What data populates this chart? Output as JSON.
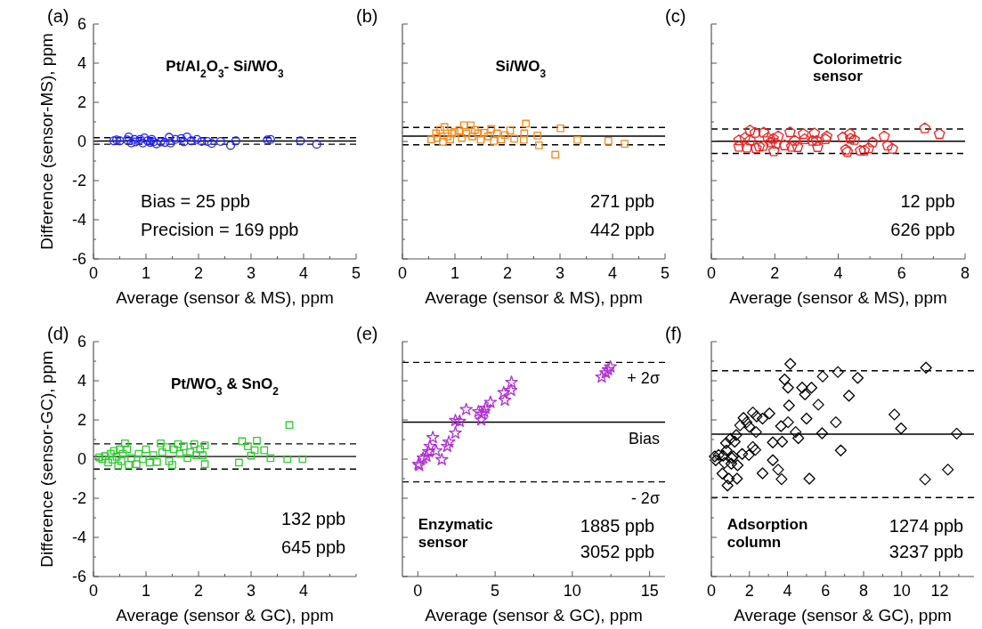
{
  "chart_data": [
    {
      "type": "scatter",
      "xlabel": "Average (sensor & MS), ppm",
      "ylabel": "Difference (sensor-MS), ppm",
      "annotations": [
        "(a)",
        "Pt/Al$_{2}$O$_{3}$- Si/WO$_{3}$",
        "Bias = 25 ppb",
        "Precision = 169 ppb"
      ],
      "marker": "circle",
      "color": "#1f1fff",
      "x": [
        0.44,
        0.5,
        0.67,
        0.64,
        0.8,
        0.78,
        0.89,
        0.97,
        1.03,
        1.08,
        1.14,
        1.2,
        1.28,
        1.36,
        1.44,
        1.47,
        1.56,
        1.67,
        1.78,
        1.86,
        1.97,
        2.06,
        2.17,
        2.25,
        2.42,
        2.61,
        2.71,
        3.31,
        3.37,
        3.94,
        4.25,
        0.39,
        0.72,
        0.94,
        1.11,
        1.72
      ],
      "values": [
        0.08,
        0.03,
        0.23,
        0.08,
        -0.02,
        0.1,
        0.1,
        0.18,
        0.03,
        -0.05,
        -0.02,
        -0.12,
        -0.02,
        -0.05,
        0.21,
        -0.08,
        0.1,
        0.15,
        0.23,
        0.03,
        0.1,
        0,
        0,
        -0.1,
        0,
        -0.2,
        0.03,
        0.08,
        0.1,
        0.03,
        -0.15,
        0.03,
        -0.08,
        -0.08,
        0.1,
        -0.02
      ],
      "xlim": [
        0,
        5
      ],
      "xticks": [
        0,
        {
          "value": 0.5,
          "label": null
        },
        1,
        {
          "value": 1.5,
          "label": null
        },
        2,
        {
          "value": 2.5,
          "label": null
        },
        3,
        {
          "value": 3.5,
          "label": null
        },
        4,
        {
          "value": 4.5,
          "label": null
        },
        5
      ],
      "ylim": [
        -6,
        6
      ],
      "yticks": [
        -6,
        {
          "value": -5,
          "label": null
        },
        -4,
        {
          "value": -3,
          "label": null
        },
        -2,
        {
          "value": -1,
          "label": null
        },
        0,
        {
          "value": 1,
          "label": null
        },
        2,
        {
          "value": 3,
          "label": null
        },
        4,
        {
          "value": 5,
          "label": null
        },
        6
      ],
      "ref_lines": [
        {
          "axis": "y",
          "value": 0.025,
          "color": "#000000",
          "line_style": "solid"
        },
        {
          "axis": "y",
          "value": 0.194,
          "color": "#000000",
          "line_style": "dashed"
        },
        {
          "axis": "y",
          "value": -0.144,
          "color": "#000000",
          "line_style": "dashed"
        }
      ]
    },
    {
      "type": "scatter",
      "xlabel": "Average (sensor & MS), ppm",
      "annotations": [
        "(b)",
        "Si/WO$_{3}$",
        "271 ppb",
        "442 ppb"
      ],
      "marker": "square",
      "color": "#f58a1f",
      "x": [
        0.55,
        0.64,
        0.72,
        0.8,
        0.77,
        0.86,
        0.91,
        0.99,
        1.08,
        1.13,
        1.17,
        1.22,
        1.3,
        1.33,
        1.38,
        1.49,
        1.55,
        1.63,
        1.69,
        1.74,
        1.8,
        1.88,
        1.95,
        2.05,
        2.13,
        2.31,
        2.32,
        2.35,
        2.57,
        2.6,
        2.91,
        3.01,
        3.33,
        3.92,
        4.23,
        0.66,
        0.94,
        1.44
      ],
      "values": [
        0.1,
        0.41,
        0.59,
        0.74,
        -0.02,
        0.26,
        0.1,
        0.48,
        0.56,
        0.18,
        0.83,
        0.41,
        0.83,
        0.26,
        0.59,
        0.08,
        0.44,
        0.26,
        0.64,
        0.03,
        0.41,
        0.1,
        0.33,
        0.56,
        0.14,
        0.08,
        0.41,
        0.91,
        0.3,
        -0.2,
        -0.68,
        0.67,
        0.08,
        0.03,
        -0.12,
        0.18,
        0.41,
        0.41
      ],
      "xlim": [
        0,
        5
      ],
      "xticks": [
        0,
        {
          "value": 0.5,
          "label": null
        },
        1,
        {
          "value": 1.5,
          "label": null
        },
        2,
        {
          "value": 2.5,
          "label": null
        },
        3,
        {
          "value": 3.5,
          "label": null
        },
        4,
        {
          "value": 4.5,
          "label": null
        },
        5
      ],
      "ylim": [
        -6,
        6
      ],
      "yticks": [
        -6,
        {
          "value": -5,
          "label": null
        },
        -4,
        {
          "value": -3,
          "label": null
        },
        -2,
        {
          "value": -1,
          "label": null
        },
        0,
        {
          "value": 1,
          "label": null
        },
        2,
        {
          "value": 3,
          "label": null
        },
        4,
        {
          "value": 5,
          "label": null
        },
        6
      ],
      "tick_labels": "x",
      "ref_lines": [
        {
          "axis": "y",
          "value": 0.271,
          "color": "#000000",
          "line_style": "solid"
        },
        {
          "axis": "y",
          "value": 0.713,
          "color": "#000000",
          "line_style": "dashed"
        },
        {
          "axis": "y",
          "value": -0.171,
          "color": "#000000",
          "line_style": "dashed"
        }
      ]
    },
    {
      "type": "scatter",
      "xlabel": "Average (sensor & MS), ppm",
      "annotations": [
        "(c)",
        "Colorimetric\nsensor",
        "12 ppb",
        "626 ppb"
      ],
      "color": "#ee2222",
      "x": [
        0.87,
        0.87,
        1.06,
        1.12,
        1.22,
        1.22,
        1.38,
        1.41,
        1.51,
        1.63,
        1.65,
        1.78,
        1.87,
        1.95,
        1.97,
        2.04,
        2.11,
        2.31,
        2.48,
        2.53,
        2.63,
        2.72,
        2.9,
        2.94,
        3.19,
        3.25,
        3.32,
        3.35,
        3.6,
        3.64,
        4.14,
        4.24,
        4.29,
        4.37,
        4.39,
        4.51,
        4.7,
        4.82,
        4.96,
        5.08,
        5.45,
        5.56,
        5.71,
        6.73,
        7.19
      ],
      "values": [
        0.06,
        -0.27,
        0.18,
        -0.32,
        0.56,
        0.06,
        0.44,
        -0.35,
        -0.26,
        -0.23,
        0.45,
        0.18,
        -0.05,
        0.14,
        -0.5,
        -0.11,
        0.26,
        -0.2,
        0.47,
        -0.27,
        0.03,
        -0.29,
        0.38,
        0.11,
        0.03,
        0.41,
        0.03,
        -0.29,
        0.11,
        0.26,
        0.2,
        -0.42,
        -0.53,
        0.38,
        0.14,
        0.08,
        -0.47,
        -0.47,
        -0.35,
        -0.05,
        0.26,
        -0.21,
        -0.38,
        0.67,
        0.38
      ],
      "xlim": [
        0,
        8
      ],
      "xticks": [
        0,
        {
          "value": 1,
          "label": null
        },
        2,
        {
          "value": 3,
          "label": null
        },
        4,
        {
          "value": 5,
          "label": null
        },
        6,
        {
          "value": 7,
          "label": null
        },
        8
      ],
      "ylim": [
        -6,
        6
      ],
      "yticks": [
        -6,
        {
          "value": -5,
          "label": null
        },
        -4,
        {
          "value": -3,
          "label": null
        },
        -2,
        {
          "value": -1,
          "label": null
        },
        0,
        {
          "value": 1,
          "label": null
        },
        2,
        {
          "value": 3,
          "label": null
        },
        4,
        {
          "value": 5,
          "label": null
        },
        6
      ],
      "tick_labels": "x",
      "ref_lines": [
        {
          "axis": "y",
          "value": 0.012,
          "color": "#000000",
          "line_style": "solid"
        },
        {
          "axis": "y",
          "value": 0.638,
          "color": "#000000",
          "line_style": "dashed"
        },
        {
          "axis": "y",
          "value": -0.614,
          "color": "#000000",
          "line_style": "dashed"
        }
      ]
    },
    {
      "type": "scatter",
      "xlabel": "Average (sensor & GC), ppm",
      "ylabel": "Difference (sensor-GC), ppm",
      "annotations": [
        "(d)",
        "Pt/WO$_{3}$ & SnO$_{2}$",
        "132 ppb",
        "645 ppb"
      ],
      "marker": "square",
      "color": "#2ecc2e",
      "x": [
        0.11,
        0.17,
        0.22,
        0.28,
        0.33,
        0.36,
        0.39,
        0.44,
        0.47,
        0.5,
        0.53,
        0.56,
        0.6,
        0.64,
        0.67,
        0.72,
        0.82,
        0.86,
        0.94,
        1.0,
        1.07,
        1.14,
        1.21,
        1.28,
        1.31,
        1.39,
        1.44,
        1.5,
        1.53,
        1.61,
        1.64,
        1.72,
        1.79,
        1.84,
        1.92,
        1.96,
        2.03,
        2.08,
        2.12,
        2.12,
        2.77,
        2.83,
        2.94,
        3.0,
        3.07,
        3.11,
        3.25,
        3.37,
        3.69,
        3.73,
        3.98
      ],
      "values": [
        0.09,
        0,
        0.15,
        -0.18,
        0.27,
        -0.03,
        0.42,
        0.12,
        -0.33,
        0.5,
        -0.11,
        0.27,
        0.8,
        0.5,
        -0.3,
        0.05,
        -0.26,
        0.27,
        0,
        0.5,
        -0.18,
        0.2,
        -0.15,
        0.8,
        0.35,
        0.61,
        -0.11,
        -0.3,
        0.5,
        0.76,
        0.27,
        0.65,
        0.05,
        0.35,
        0.76,
        0.2,
        0.5,
        0.2,
        0.7,
        -0.26,
        -0.18,
        0.91,
        0.65,
        0.18,
        0.45,
        0.94,
        0.45,
        0.05,
        0,
        1.74,
        0
      ],
      "xlim": [
        0,
        5
      ],
      "xticks": [
        0,
        {
          "value": 0.5,
          "label": null
        },
        1,
        {
          "value": 1.5,
          "label": null
        },
        2,
        {
          "value": 2.5,
          "label": null
        },
        3,
        {
          "value": 3.5,
          "label": null
        },
        4,
        {
          "value": 4.5,
          "label": null
        },
        {
          "value": 5,
          "label": null
        }
      ],
      "ylim": [
        -6,
        6
      ],
      "yticks": [
        -6,
        {
          "value": -5,
          "label": null
        },
        -4,
        {
          "value": -3,
          "label": null
        },
        -2,
        {
          "value": -1,
          "label": null
        },
        0,
        {
          "value": 1,
          "label": null
        },
        2,
        {
          "value": 3,
          "label": null
        },
        4,
        {
          "value": 5,
          "label": null
        },
        6
      ],
      "ref_lines": [
        {
          "axis": "y",
          "value": 0.132,
          "color": "#000000",
          "line_style": "solid"
        },
        {
          "axis": "y",
          "value": 0.777,
          "color": "#000000",
          "line_style": "dashed"
        },
        {
          "axis": "y",
          "value": -0.513,
          "color": "#000000",
          "line_style": "dashed"
        }
      ]
    },
    {
      "type": "scatter",
      "xlabel": "Average (sensor & GC), ppm",
      "annotations": [
        "(e)",
        "Enzymatic\nsensor",
        "1885 ppb",
        "3052 ppb"
      ],
      "marker": "star",
      "color": "#b02fd6",
      "x": [
        0.09,
        0.04,
        0.34,
        0.56,
        0.69,
        0.78,
        0.97,
        1.18,
        1.55,
        1.9,
        2.01,
        2.43,
        2.43,
        2.71,
        3.13,
        3.92,
        4.1,
        4.14,
        4.29,
        4.38,
        4.7,
        5.56,
        5.63,
        6.03,
        6.06,
        11.9,
        12.16,
        12.31,
        12.46
      ],
      "values": [
        -0.33,
        -0.26,
        0.05,
        0.15,
        0.38,
        0.65,
        1.1,
        0.42,
        -0.03,
        0.65,
        0.87,
        1.33,
        1.97,
        1.93,
        2.53,
        2.42,
        2.0,
        2.3,
        2.42,
        2.6,
        2.9,
        3.39,
        3.01,
        3.51,
        3.92,
        4.19,
        4.41,
        4.56,
        4.71
      ],
      "xlim": [
        -1,
        16
      ],
      "xticks": [
        0,
        {
          "value": 2.5,
          "label": null
        },
        5,
        {
          "value": 7.5,
          "label": null
        },
        10,
        {
          "value": 12.5,
          "label": null
        },
        15
      ],
      "ylim": [
        -6,
        6
      ],
      "yticks": [
        -6,
        {
          "value": -5,
          "label": null
        },
        -4,
        {
          "value": -3,
          "label": null
        },
        -2,
        {
          "value": -1,
          "label": null
        },
        0,
        {
          "value": 1,
          "label": null
        },
        2,
        {
          "value": 3,
          "label": null
        },
        4,
        {
          "value": 5,
          "label": null
        },
        6
      ],
      "tick_labels": "x",
      "ref_lines": [
        {
          "axis": "y",
          "value": 1.885,
          "label": "Bias",
          "color": "#000000",
          "line_style": "solid"
        },
        {
          "axis": "y",
          "value": 4.937,
          "label": "+ 2σ",
          "color": "#000000",
          "line_style": "dashed"
        },
        {
          "axis": "y",
          "value": -1.167,
          "label": "- 2σ",
          "color": "#000000",
          "line_style": "dashed"
        }
      ]
    },
    {
      "type": "scatter",
      "xlabel": "Average (sensor & GC), ppm",
      "annotations": [
        "(f)",
        "Adsorption\ncolumn",
        "1274 ppb",
        "3237 ppb"
      ],
      "marker": "diamond",
      "color": "#000000",
      "x": [
        0.18,
        0.23,
        0.38,
        0.62,
        0.69,
        0.58,
        0.77,
        0.8,
        0.85,
        0.92,
        1.0,
        1.05,
        1.08,
        1.15,
        1.23,
        1.31,
        1.35,
        1.38,
        1.51,
        1.62,
        1.69,
        1.85,
        1.97,
        2.0,
        2.18,
        2.18,
        2.31,
        2.35,
        2.38,
        2.69,
        2.69,
        3.05,
        3.23,
        3.23,
        3.51,
        3.66,
        3.72,
        3.69,
        3.85,
        4.03,
        4.03,
        4.08,
        4.15,
        4.43,
        4.57,
        4.77,
        4.92,
        5.0,
        5.15,
        5.26,
        5.62,
        5.82,
        5.85,
        6.54,
        6.65,
        6.8,
        7.23,
        7.69,
        9.62,
        9.97,
        11.23,
        11.28,
        12.43,
        12.89
      ],
      "values": [
        0.14,
        -0.06,
        0.21,
        0.17,
        -0.2,
        -0.74,
        0.82,
        0.44,
        -1.35,
        -1.0,
        1.04,
        -0.24,
        0.06,
        0.14,
        0.89,
        1.23,
        -1.0,
        -0.32,
        1.72,
        0.26,
        2.1,
        1.88,
        0.21,
        1.65,
        2.38,
        0.62,
        0.47,
        1.38,
        2.18,
        2.07,
        -0.73,
        2.33,
        0.85,
        -0.06,
        -0.54,
        1.68,
        0.89,
        -1.03,
        4.07,
        1.88,
        3.65,
        2.74,
        4.86,
        1.38,
        1.07,
        3.65,
        3.31,
        2.07,
        -1.0,
        3.65,
        2.78,
        1.32,
        4.22,
        1.88,
        4.45,
        0.44,
        3.24,
        4.15,
        2.28,
        1.57,
        -1.04,
        4.67,
        -0.54,
        1.3
      ],
      "xlim": [
        0,
        13.8
      ],
      "xticks": [
        0,
        {
          "value": 1,
          "label": null
        },
        2,
        {
          "value": 3,
          "label": null
        },
        4,
        {
          "value": 5,
          "label": null
        },
        6,
        {
          "value": 7,
          "label": null
        },
        8,
        {
          "value": 9,
          "label": null
        },
        10,
        {
          "value": 11,
          "label": null
        },
        12,
        {
          "value": 13,
          "label": null
        }
      ],
      "ylim": [
        -6,
        6
      ],
      "yticks": [
        -6,
        {
          "value": -5,
          "label": null
        },
        -4,
        {
          "value": -3,
          "label": null
        },
        -2,
        {
          "value": -1,
          "label": null
        },
        0,
        {
          "value": 1,
          "label": null
        },
        2,
        {
          "value": 3,
          "label": null
        },
        4,
        {
          "value": 5,
          "label": null
        },
        6
      ],
      "tick_labels": "x",
      "ref_lines": [
        {
          "axis": "y",
          "value": 1.274,
          "color": "#000000",
          "line_style": "solid"
        },
        {
          "axis": "y",
          "value": 4.511,
          "color": "#000000",
          "line_style": "dashed"
        },
        {
          "axis": "y",
          "value": -1.963,
          "color": "#000000",
          "line_style": "dashed"
        }
      ]
    }
  ]
}
